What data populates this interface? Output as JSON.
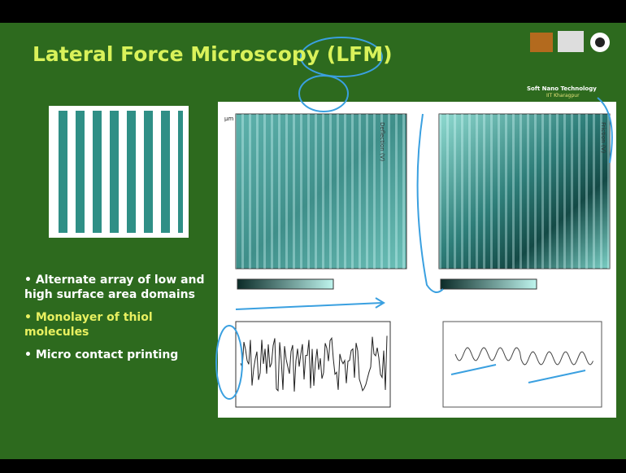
{
  "header": {
    "title": "Lateral Force Microscopy (LFM)",
    "logo_text": "Soft Nano Technology",
    "logo_subtext": "IIT Kharagpur"
  },
  "figure": {
    "left_image_label": "Deflection (V)",
    "right_image_label": "Friction (V)",
    "unit": "µm"
  },
  "bullets": [
    {
      "text": "Alternate array of low and high surface area domains"
    },
    {
      "text": "Monolayer of thiol molecules"
    },
    {
      "text": "Micro contact printing"
    }
  ]
}
